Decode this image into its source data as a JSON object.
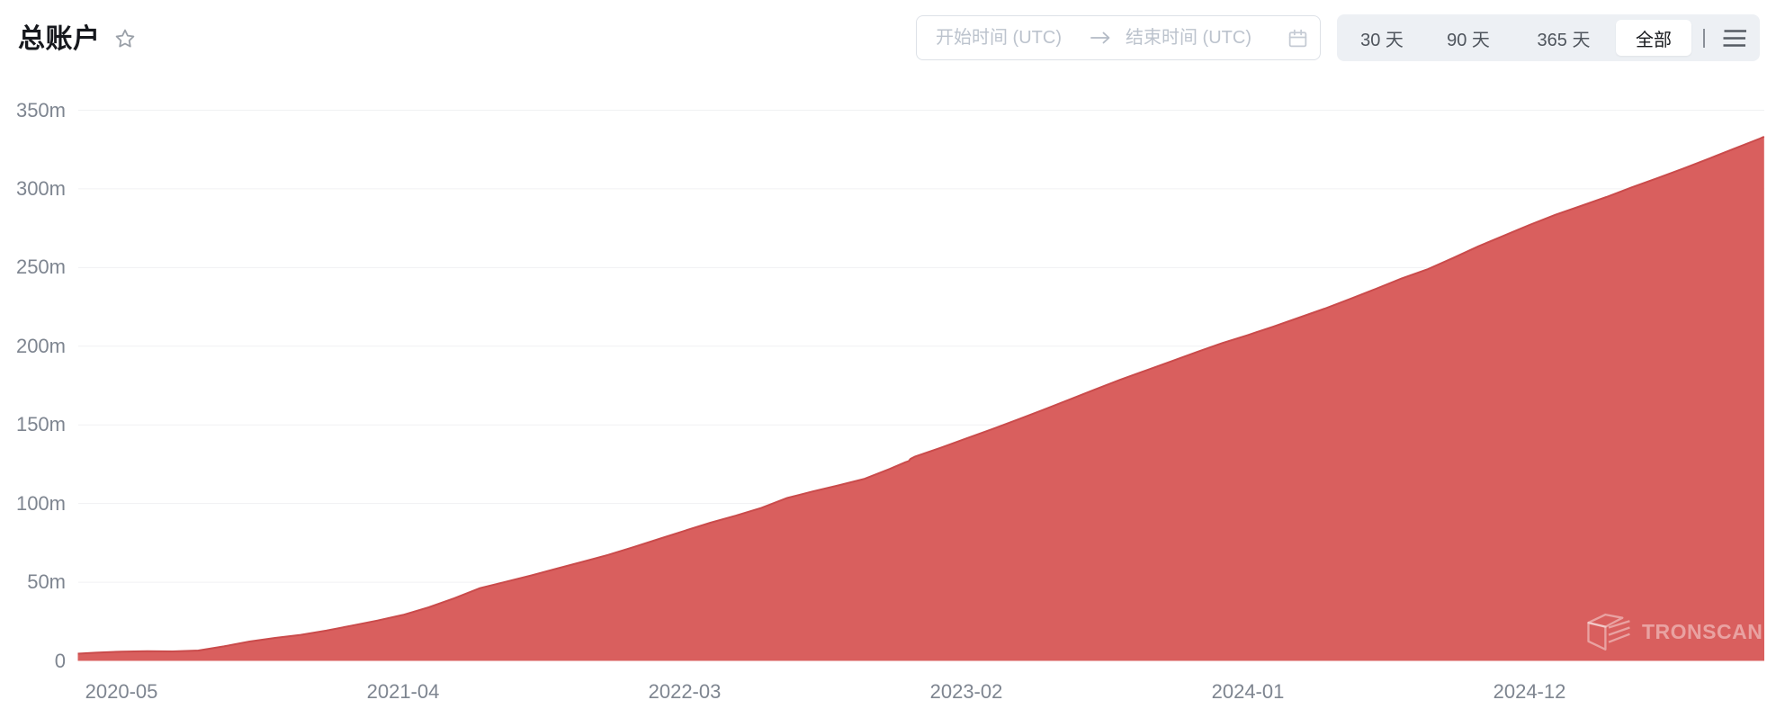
{
  "header": {
    "title": "总账户",
    "favorite_icon": "star-outline"
  },
  "date_range_picker": {
    "start_placeholder": "开始时间 (UTC)",
    "end_placeholder": "结束时间 (UTC)",
    "arrow_icon": "arrow-right",
    "calendar_icon": "calendar"
  },
  "range_switcher": {
    "options": [
      {
        "label": "30 天",
        "selected": false
      },
      {
        "label": "90 天",
        "selected": false
      },
      {
        "label": "365 天",
        "selected": false
      },
      {
        "label": "全部",
        "selected": true
      }
    ],
    "menu_icon": "hamburger-menu"
  },
  "watermark": {
    "icon": "tronscan-logo",
    "text": "TRONSCAN"
  },
  "colors": {
    "area_fill": "#d95f5e",
    "area_line": "#ca4b4b",
    "grid_line": "#f0f1f3",
    "axis_label": "#7e8590",
    "switcher_bg": "#edf0f4",
    "active_pill_bg": "#ffffff"
  },
  "chart_data": {
    "type": "area",
    "title": "总账户",
    "xlabel": "",
    "ylabel": "",
    "unit": "m = million accounts",
    "grid": true,
    "legend": false,
    "y_max": 350,
    "y_ticks": [
      {
        "label": "0",
        "value": 0
      },
      {
        "label": "50m",
        "value": 50
      },
      {
        "label": "100m",
        "value": 100
      },
      {
        "label": "150m",
        "value": 150
      },
      {
        "label": "200m",
        "value": 200
      },
      {
        "label": "250m",
        "value": 250
      },
      {
        "label": "300m",
        "value": 300
      },
      {
        "label": "350m",
        "value": 350
      }
    ],
    "x_ticks": [
      {
        "label": "2020-05",
        "date": "2020-05-01"
      },
      {
        "label": "2021-04",
        "date": "2021-04-01"
      },
      {
        "label": "2022-03",
        "date": "2022-03-01"
      },
      {
        "label": "2023-02",
        "date": "2023-02-01"
      },
      {
        "label": "2024-01",
        "date": "2024-01-01"
      },
      {
        "label": "2024-12",
        "date": "2024-12-01"
      }
    ],
    "series": [
      {
        "name": "总账户",
        "unit": "millions",
        "data": [
          [
            "2020-03-10",
            4.6
          ],
          [
            "2020-04-01",
            5.2
          ],
          [
            "2020-05-01",
            5.9
          ],
          [
            "2020-06-01",
            6.1
          ],
          [
            "2020-07-01",
            6.0
          ],
          [
            "2020-08-01",
            6.6
          ],
          [
            "2020-09-01",
            9.2
          ],
          [
            "2020-10-01",
            12.3
          ],
          [
            "2020-11-01",
            14.6
          ],
          [
            "2020-12-01",
            16.5
          ],
          [
            "2021-01-01",
            19.2
          ],
          [
            "2021-02-01",
            22.4
          ],
          [
            "2021-03-01",
            25.6
          ],
          [
            "2021-04-01",
            29.2
          ],
          [
            "2021-05-01",
            34.0
          ],
          [
            "2021-06-01",
            39.8
          ],
          [
            "2021-07-01",
            46.2
          ],
          [
            "2021-08-01",
            50.2
          ],
          [
            "2021-09-01",
            54.3
          ],
          [
            "2021-10-01",
            58.6
          ],
          [
            "2021-11-01",
            62.9
          ],
          [
            "2021-12-01",
            67.3
          ],
          [
            "2022-01-01",
            72.3
          ],
          [
            "2022-02-01",
            77.5
          ],
          [
            "2022-03-01",
            82.7
          ],
          [
            "2022-04-01",
            87.8
          ],
          [
            "2022-05-01",
            92.3
          ],
          [
            "2022-06-01",
            97.3
          ],
          [
            "2022-07-01",
            103.5
          ],
          [
            "2022-08-01",
            107.7
          ],
          [
            "2022-09-01",
            111.5
          ],
          [
            "2022-10-01",
            115.6
          ],
          [
            "2022-11-01",
            121.9
          ],
          [
            "2022-11-20",
            126.3
          ],
          [
            "2022-11-24",
            127.0
          ],
          [
            "2022-11-26",
            128.4
          ],
          [
            "2022-12-01",
            129.9
          ],
          [
            "2023-01-01",
            135.4
          ],
          [
            "2023-02-01",
            141.4
          ],
          [
            "2023-03-01",
            147.2
          ],
          [
            "2023-04-01",
            153.3
          ],
          [
            "2023-05-01",
            159.5
          ],
          [
            "2023-06-01",
            165.9
          ],
          [
            "2023-07-01",
            172.3
          ],
          [
            "2023-08-01",
            178.6
          ],
          [
            "2023-09-01",
            184.5
          ],
          [
            "2023-10-01",
            190.3
          ],
          [
            "2023-11-01",
            196.3
          ],
          [
            "2023-12-01",
            202.0
          ],
          [
            "2024-01-01",
            207.1
          ],
          [
            "2024-02-01",
            212.5
          ],
          [
            "2024-03-01",
            218.2
          ],
          [
            "2024-04-01",
            223.9
          ],
          [
            "2024-05-01",
            230.1
          ],
          [
            "2024-06-01",
            236.5
          ],
          [
            "2024-07-01",
            243.0
          ],
          [
            "2024-08-01",
            248.8
          ],
          [
            "2024-09-01",
            256.0
          ],
          [
            "2024-10-01",
            263.5
          ],
          [
            "2024-11-01",
            270.3
          ],
          [
            "2024-12-01",
            277.1
          ],
          [
            "2025-01-01",
            283.5
          ],
          [
            "2025-02-01",
            289.1
          ],
          [
            "2025-03-01",
            294.8
          ],
          [
            "2025-04-01",
            301.0
          ],
          [
            "2025-05-01",
            306.9
          ],
          [
            "2025-06-01",
            312.9
          ],
          [
            "2025-07-01",
            319.2
          ],
          [
            "2025-08-01",
            325.6
          ],
          [
            "2025-09-01",
            332.0
          ],
          [
            "2025-09-06",
            333.2
          ]
        ]
      }
    ]
  }
}
